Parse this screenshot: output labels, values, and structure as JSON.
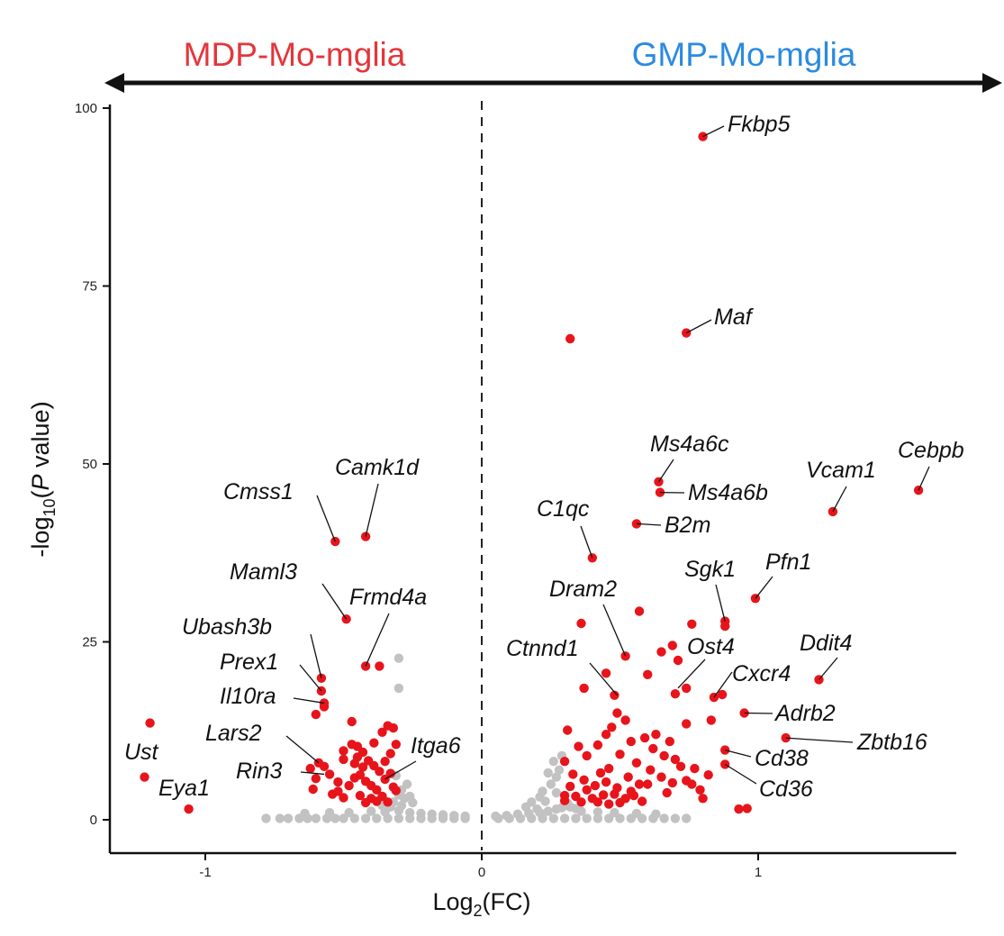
{
  "chart_data": {
    "type": "scatter",
    "subtype": "volcano",
    "group_left": {
      "label": "MDP-Mo-mglia",
      "color": "#e3363b"
    },
    "group_right": {
      "label": "GMP-Mo-mglia",
      "color": "#2b8ae0"
    },
    "xlabel": {
      "prefix": "Log",
      "sub": "2",
      "suffix": "(FC)"
    },
    "ylabel": {
      "prefix": "-log",
      "sub": "10",
      "mid": "(",
      "italic": "P",
      "suffix": " value)"
    },
    "xlim": [
      -1.35,
      1.72
    ],
    "ylim": [
      -4,
      102
    ],
    "x_ticks": [
      {
        "v": -1,
        "label": "-1"
      },
      {
        "v": 0,
        "label": "0"
      },
      {
        "v": 1,
        "label": "1"
      }
    ],
    "y_ticks": [
      {
        "v": 0,
        "label": "0"
      },
      {
        "v": 25,
        "label": "25"
      },
      {
        "v": 50,
        "label": "50"
      },
      {
        "v": 75,
        "label": "75"
      },
      {
        "v": 100,
        "label": "100"
      }
    ],
    "threshold_x": 0,
    "colors": {
      "significant": "#e8141b",
      "not_significant": "#c2c2c2"
    },
    "series": [
      {
        "name": "significant",
        "points": [
          [
            0.8,
            96
          ],
          [
            0.74,
            68.4
          ],
          [
            0.32,
            67.6
          ],
          [
            1.58,
            46.3
          ],
          [
            1.27,
            43.3
          ],
          [
            0.64,
            47.5
          ],
          [
            0.645,
            46
          ],
          [
            0.56,
            41.6
          ],
          [
            0.4,
            36.8
          ],
          [
            0.99,
            31.1
          ],
          [
            0.88,
            27.9
          ],
          [
            0.88,
            27.2
          ],
          [
            0.76,
            27.5
          ],
          [
            0.57,
            29.3
          ],
          [
            0.36,
            27.6
          ],
          [
            0.52,
            23
          ],
          [
            0.65,
            23.6
          ],
          [
            0.69,
            24.5
          ],
          [
            0.71,
            22.4
          ],
          [
            0.6,
            20.4
          ],
          [
            0.7,
            17.7
          ],
          [
            0.74,
            18.5
          ],
          [
            0.45,
            20.6
          ],
          [
            0.37,
            18.5
          ],
          [
            0.48,
            17.5
          ],
          [
            0.87,
            17.6
          ],
          [
            0.84,
            17.2
          ],
          [
            1.22,
            19.7
          ],
          [
            0.95,
            15
          ],
          [
            1.1,
            11.5
          ],
          [
            0.83,
            14
          ],
          [
            0.74,
            13.5
          ],
          [
            0.88,
            9.8
          ],
          [
            0.88,
            7.8
          ],
          [
            0.93,
            1.5
          ],
          [
            0.96,
            1.6
          ],
          [
            0.77,
            7.2
          ],
          [
            0.82,
            6.3
          ],
          [
            0.52,
            14
          ],
          [
            0.49,
            15
          ],
          [
            0.45,
            12
          ],
          [
            0.42,
            10.5
          ],
          [
            0.62,
            10
          ],
          [
            0.66,
            9
          ],
          [
            0.7,
            8.5
          ],
          [
            0.74,
            5.5
          ],
          [
            0.6,
            5
          ],
          [
            0.67,
            3.8
          ],
          [
            0.58,
            2.6
          ],
          [
            0.55,
            3.4
          ],
          [
            0.43,
            6.6
          ],
          [
            0.46,
            7.2
          ],
          [
            0.5,
            9.2
          ],
          [
            0.38,
            9
          ],
          [
            0.35,
            10.3
          ],
          [
            0.31,
            12.6
          ],
          [
            0.3,
            8.2
          ],
          [
            0.3,
            3.4
          ],
          [
            0.3,
            2.7
          ],
          [
            0.32,
            4.7
          ],
          [
            0.34,
            3.3
          ],
          [
            0.36,
            2.5
          ],
          [
            0.38,
            4.2
          ],
          [
            0.4,
            3
          ],
          [
            0.42,
            2.5
          ],
          [
            0.44,
            3.5
          ],
          [
            0.46,
            2.2
          ],
          [
            0.48,
            3.6
          ],
          [
            0.5,
            2.4
          ],
          [
            0.52,
            3
          ],
          [
            0.54,
            4
          ],
          [
            0.33,
            6.4
          ],
          [
            0.37,
            5.6
          ],
          [
            0.41,
            4.8
          ],
          [
            0.45,
            5.3
          ],
          [
            0.49,
            4.5
          ],
          [
            0.53,
            6
          ],
          [
            0.57,
            5
          ],
          [
            0.61,
            7
          ],
          [
            0.65,
            6
          ],
          [
            0.69,
            5.2
          ],
          [
            0.72,
            7.5
          ],
          [
            0.76,
            5
          ],
          [
            0.79,
            4.2
          ],
          [
            0.8,
            3
          ],
          [
            0.56,
            8
          ],
          [
            0.63,
            12
          ],
          [
            0.68,
            11
          ],
          [
            0.59,
            11.5
          ],
          [
            0.54,
            11
          ],
          [
            0.47,
            13
          ],
          [
            -0.53,
            39.1
          ],
          [
            -0.42,
            39.8
          ],
          [
            -0.49,
            28.2
          ],
          [
            -0.42,
            21.6
          ],
          [
            -0.37,
            21.6
          ],
          [
            -0.58,
            19.9
          ],
          [
            -0.58,
            18.1
          ],
          [
            -0.57,
            16.4
          ],
          [
            -0.6,
            14.8
          ],
          [
            -1.2,
            13.6
          ],
          [
            -1.22,
            6
          ],
          [
            -1.06,
            1.5
          ],
          [
            -0.57,
            15.9
          ],
          [
            -0.47,
            13.8
          ],
          [
            -0.59,
            8
          ],
          [
            -0.62,
            7.2
          ],
          [
            -0.6,
            5.8
          ],
          [
            -0.61,
            4.3
          ],
          [
            -0.55,
            6.4
          ],
          [
            -0.52,
            4
          ],
          [
            -0.5,
            3.1
          ],
          [
            -0.48,
            4.8
          ],
          [
            -0.46,
            5.9
          ],
          [
            -0.44,
            3.4
          ],
          [
            -0.42,
            2.4
          ],
          [
            -0.4,
            3
          ],
          [
            -0.38,
            4.2
          ],
          [
            -0.36,
            3.3
          ],
          [
            -0.34,
            2.5
          ],
          [
            -0.32,
            4.6
          ],
          [
            -0.5,
            9.7
          ],
          [
            -0.47,
            10.6
          ],
          [
            -0.45,
            10.3
          ],
          [
            -0.43,
            9.5
          ],
          [
            -0.41,
            8.3
          ],
          [
            -0.39,
            7.6
          ],
          [
            -0.37,
            6.8
          ],
          [
            -0.35,
            5.7
          ],
          [
            -0.33,
            6.5
          ],
          [
            -0.31,
            4.1
          ],
          [
            -0.46,
            7.9
          ],
          [
            -0.44,
            6.3
          ],
          [
            -0.42,
            5.4
          ],
          [
            -0.4,
            4.8
          ],
          [
            -0.38,
            2.6
          ],
          [
            -0.36,
            12.3
          ],
          [
            -0.34,
            13.2
          ],
          [
            -0.32,
            12.9
          ],
          [
            -0.31,
            10.6
          ],
          [
            -0.33,
            9.3
          ],
          [
            -0.35,
            8.2
          ],
          [
            -0.45,
            8.8
          ],
          [
            -0.43,
            7.4
          ],
          [
            -0.5,
            8.5
          ],
          [
            -0.52,
            5.3
          ],
          [
            -0.54,
            3.6
          ],
          [
            -0.57,
            7.5
          ],
          [
            -0.39,
            10.8
          ]
        ]
      },
      {
        "name": "not significant",
        "points": [
          [
            -0.78,
            0.2
          ],
          [
            -0.73,
            0.2
          ],
          [
            -0.7,
            0.2
          ],
          [
            -0.66,
            0.2
          ],
          [
            -0.63,
            0.2
          ],
          [
            -0.6,
            0.2
          ],
          [
            -0.56,
            0.2
          ],
          [
            -0.53,
            0.2
          ],
          [
            -0.5,
            0.2
          ],
          [
            -0.46,
            0.2
          ],
          [
            -0.42,
            0.2
          ],
          [
            -0.38,
            0.2
          ],
          [
            -0.34,
            0.2
          ],
          [
            -0.3,
            0.2
          ],
          [
            -0.26,
            0.2
          ],
          [
            -0.22,
            0.2
          ],
          [
            -0.18,
            0.2
          ],
          [
            -0.14,
            0.2
          ],
          [
            -0.1,
            0.2
          ],
          [
            -0.06,
            0.2
          ],
          [
            0.06,
            0.2
          ],
          [
            0.1,
            0.2
          ],
          [
            0.14,
            0.2
          ],
          [
            0.18,
            0.2
          ],
          [
            0.22,
            0.2
          ],
          [
            0.26,
            0.2
          ],
          [
            0.3,
            0.2
          ],
          [
            0.34,
            0.2
          ],
          [
            0.38,
            0.2
          ],
          [
            0.42,
            0.2
          ],
          [
            0.46,
            0.2
          ],
          [
            0.5,
            0.2
          ],
          [
            0.54,
            0.2
          ],
          [
            0.58,
            0.2
          ],
          [
            0.62,
            0.2
          ],
          [
            0.66,
            0.2
          ],
          [
            0.7,
            0.2
          ],
          [
            0.74,
            0.2
          ],
          [
            -0.64,
            0.9
          ],
          [
            -0.55,
            1
          ],
          [
            -0.48,
            1
          ],
          [
            -0.4,
            1.2
          ],
          [
            -0.35,
            1.1
          ],
          [
            -0.3,
            1.3
          ],
          [
            -0.26,
            1
          ],
          [
            -0.22,
            0.9
          ],
          [
            -0.18,
            0.8
          ],
          [
            -0.14,
            0.7
          ],
          [
            -0.1,
            0.6
          ],
          [
            -0.06,
            0.5
          ],
          [
            0.05,
            0.5
          ],
          [
            0.09,
            0.6
          ],
          [
            0.13,
            0.8
          ],
          [
            0.17,
            0.9
          ],
          [
            0.21,
            1
          ],
          [
            0.24,
            1.2
          ],
          [
            0.27,
            1.5
          ],
          [
            0.29,
            1.7
          ],
          [
            0.36,
            1.2
          ],
          [
            0.42,
            1.1
          ],
          [
            0.48,
            1
          ],
          [
            0.56,
            0.9
          ],
          [
            0.63,
            0.8
          ],
          [
            -0.32,
            2.5
          ],
          [
            -0.28,
            3
          ],
          [
            -0.25,
            2.4
          ],
          [
            -0.29,
            4.2
          ],
          [
            -0.27,
            5
          ],
          [
            -0.31,
            6.2
          ],
          [
            -0.3,
            3.5
          ],
          [
            -0.33,
            1.8
          ],
          [
            -0.29,
            2
          ],
          [
            -0.36,
            2
          ],
          [
            0.16,
            1.8
          ],
          [
            0.18,
            2.5
          ],
          [
            0.21,
            3.2
          ],
          [
            0.23,
            2.6
          ],
          [
            0.22,
            4
          ],
          [
            0.25,
            5
          ],
          [
            0.27,
            6
          ],
          [
            0.24,
            6.6
          ],
          [
            0.28,
            7
          ],
          [
            0.26,
            8.2
          ],
          [
            0.29,
            9
          ],
          [
            0.27,
            3.8
          ],
          [
            0.2,
            1.5
          ],
          [
            0.31,
            2.3
          ],
          [
            0.32,
            1.8
          ],
          [
            0.34,
            1.6
          ],
          [
            -0.3,
            22.7
          ],
          [
            -0.3,
            18.5
          ],
          [
            -0.26,
            3.3
          ]
        ]
      }
    ],
    "annotations": [
      {
        "label": "Fkbp5",
        "point": [
          0.8,
          96
        ]
      },
      {
        "label": "Maf",
        "point": [
          0.74,
          68.4
        ]
      },
      {
        "label": "Cebpb",
        "point": [
          1.58,
          46.3
        ]
      },
      {
        "label": "Vcam1",
        "point": [
          1.27,
          43.3
        ]
      },
      {
        "label": "Ms4a6c",
        "point": [
          0.64,
          47.5
        ]
      },
      {
        "label": "Ms4a6b",
        "point": [
          0.645,
          46
        ]
      },
      {
        "label": "B2m",
        "point": [
          0.56,
          41.6
        ]
      },
      {
        "label": "C1qc",
        "point": [
          0.4,
          36.8
        ]
      },
      {
        "label": "Pfn1",
        "point": [
          0.99,
          31.1
        ]
      },
      {
        "label": "Sgk1",
        "point": [
          0.88,
          27.9
        ]
      },
      {
        "label": "Dram2",
        "point": [
          0.52,
          23
        ]
      },
      {
        "label": "Ost4",
        "point": [
          0.71,
          18.5
        ]
      },
      {
        "label": "Ctnnd1",
        "point": [
          0.49,
          17.5
        ]
      },
      {
        "label": "Ddit4",
        "point": [
          1.22,
          19.7
        ]
      },
      {
        "label": "Cxcr4",
        "point": [
          0.84,
          17.2
        ]
      },
      {
        "label": "Adrb2",
        "point": [
          0.95,
          15
        ]
      },
      {
        "label": "Zbtb16",
        "point": [
          1.1,
          11.5
        ]
      },
      {
        "label": "Cd38",
        "point": [
          0.88,
          9.8
        ]
      },
      {
        "label": "Cd36",
        "point": [
          0.88,
          7.8
        ]
      },
      {
        "label": "Camk1d",
        "point": [
          -0.42,
          39.8
        ]
      },
      {
        "label": "Cmss1",
        "point": [
          -0.53,
          39.1
        ]
      },
      {
        "label": "Maml3",
        "point": [
          -0.49,
          28.2
        ]
      },
      {
        "label": "Frmd4a",
        "point": [
          -0.42,
          21.6
        ]
      },
      {
        "label": "Ubash3b",
        "point": [
          -0.58,
          19.9
        ]
      },
      {
        "label": "Prex1",
        "point": [
          -0.58,
          18.1
        ]
      },
      {
        "label": "Il10ra",
        "point": [
          -0.57,
          16.4
        ]
      },
      {
        "label": "Lars2",
        "point": [
          -0.59,
          8
        ]
      },
      {
        "label": "Rin3",
        "point": [
          -0.57,
          6.4
        ]
      },
      {
        "label": "Itga6",
        "point": [
          -0.35,
          5.7
        ]
      },
      {
        "label": "Ust",
        "point": [
          -1.22,
          6
        ]
      },
      {
        "label": "Eya1",
        "point": [
          -1.06,
          1.5
        ]
      }
    ]
  }
}
